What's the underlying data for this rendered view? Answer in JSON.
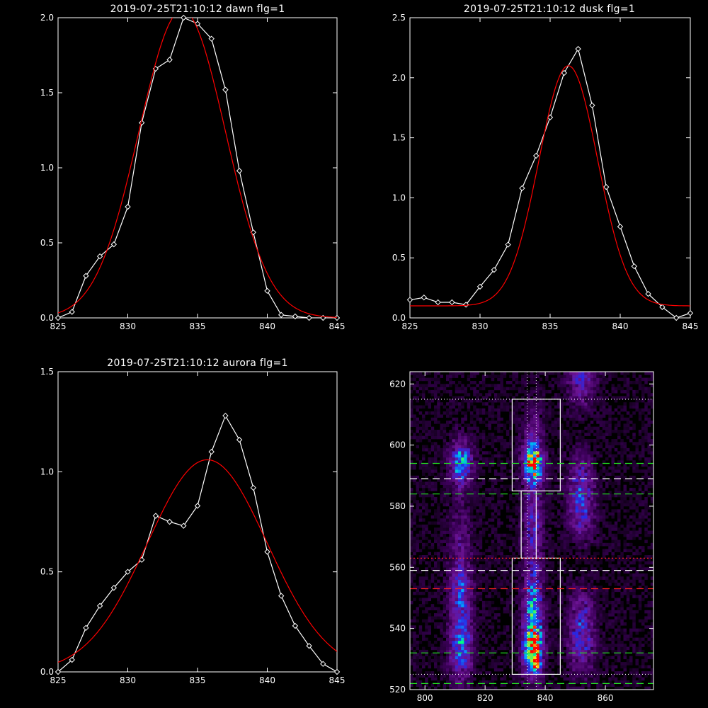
{
  "chart_data": [
    {
      "type": "line",
      "title": "2019-07-25T21:10:12 dawn flg=1",
      "xlim": [
        825,
        845
      ],
      "ylim": [
        0,
        2.0
      ],
      "xticks": [
        "825",
        "830",
        "835",
        "840",
        "845"
      ],
      "yticks": [
        "0.0",
        "0.5",
        "1.0",
        "1.5",
        "2.0"
      ],
      "series": [
        {
          "color": "#ffffff",
          "markers": "diamond",
          "x": [
            825,
            826,
            827,
            828,
            829,
            830,
            831,
            832,
            833,
            834,
            835,
            836,
            837,
            838,
            839,
            840,
            841,
            842,
            843,
            844,
            845
          ],
          "y": [
            0.0,
            0.04,
            0.28,
            0.41,
            0.49,
            0.74,
            1.3,
            1.66,
            1.72,
            2.0,
            1.96,
            1.86,
            1.52,
            0.98,
            0.57,
            0.18,
            0.02,
            0.01,
            0.0,
            0.0,
            0.0
          ]
        },
        {
          "color": "#ff0000",
          "markers": "none",
          "gauss": {
            "a": 2.05,
            "mu": 833.9,
            "sigma": 3.1,
            "base": 0.0
          }
        }
      ]
    },
    {
      "type": "line",
      "title": "2019-07-25T21:10:12 dusk flg=1",
      "xlim": [
        825,
        845
      ],
      "ylim": [
        0,
        2.5
      ],
      "xticks": [
        "825",
        "830",
        "835",
        "840",
        "845"
      ],
      "yticks": [
        "0.0",
        "0.5",
        "1.0",
        "1.5",
        "2.0",
        "2.5"
      ],
      "series": [
        {
          "color": "#ffffff",
          "markers": "diamond",
          "x": [
            825,
            826,
            827,
            828,
            829,
            830,
            831,
            832,
            833,
            834,
            835,
            836,
            837,
            838,
            839,
            840,
            841,
            842,
            843,
            844,
            845
          ],
          "y": [
            0.15,
            0.17,
            0.13,
            0.13,
            0.11,
            0.26,
            0.4,
            0.61,
            1.08,
            1.35,
            1.67,
            2.04,
            2.24,
            1.77,
            1.09,
            0.76,
            0.43,
            0.2,
            0.09,
            0.0,
            0.04
          ]
        },
        {
          "color": "#ff0000",
          "markers": "none",
          "gauss": {
            "a": 2.0,
            "mu": 836.3,
            "sigma": 2.1,
            "base": 0.1
          }
        }
      ]
    },
    {
      "type": "line",
      "title": "2019-07-25T21:10:12 aurora flg=1",
      "xlim": [
        825,
        845
      ],
      "ylim": [
        0,
        1.5
      ],
      "xticks": [
        "825",
        "830",
        "835",
        "840",
        "845"
      ],
      "yticks": [
        "0.0",
        "0.5",
        "1.0",
        "1.5"
      ],
      "series": [
        {
          "color": "#ffffff",
          "markers": "diamond",
          "x": [
            825,
            826,
            827,
            828,
            829,
            830,
            831,
            832,
            833,
            834,
            835,
            836,
            837,
            838,
            839,
            840,
            841,
            842,
            843,
            844,
            845
          ],
          "y": [
            0.0,
            0.06,
            0.22,
            0.33,
            0.42,
            0.5,
            0.56,
            0.78,
            0.75,
            0.73,
            0.83,
            1.1,
            1.28,
            1.16,
            0.92,
            0.6,
            0.38,
            0.23,
            0.13,
            0.04,
            0.0
          ]
        },
        {
          "color": "#ff0000",
          "markers": "none",
          "gauss": {
            "a": 1.06,
            "mu": 835.7,
            "sigma": 4.3,
            "base": 0.0
          }
        }
      ]
    },
    {
      "type": "heatmap",
      "title": "",
      "xlim": [
        795,
        876
      ],
      "ylim": [
        520,
        624
      ],
      "xticks": [
        "800",
        "820",
        "840",
        "860"
      ],
      "yticks": [
        "520",
        "540",
        "560",
        "580",
        "600",
        "620"
      ],
      "boxes": [
        [
          829,
          585,
          845,
          615
        ],
        [
          829,
          525,
          845,
          563
        ],
        [
          832,
          563,
          837,
          585
        ]
      ],
      "green_dashed_y": [
        594,
        584,
        532,
        522
      ],
      "white_dashed_y": [
        589,
        559
      ],
      "red_dashed_y": [
        553
      ],
      "red_dotted_y": [
        563
      ],
      "white_dotted_y": [
        615,
        525
      ],
      "white_dotted_x": [
        834,
        837
      ]
    }
  ]
}
